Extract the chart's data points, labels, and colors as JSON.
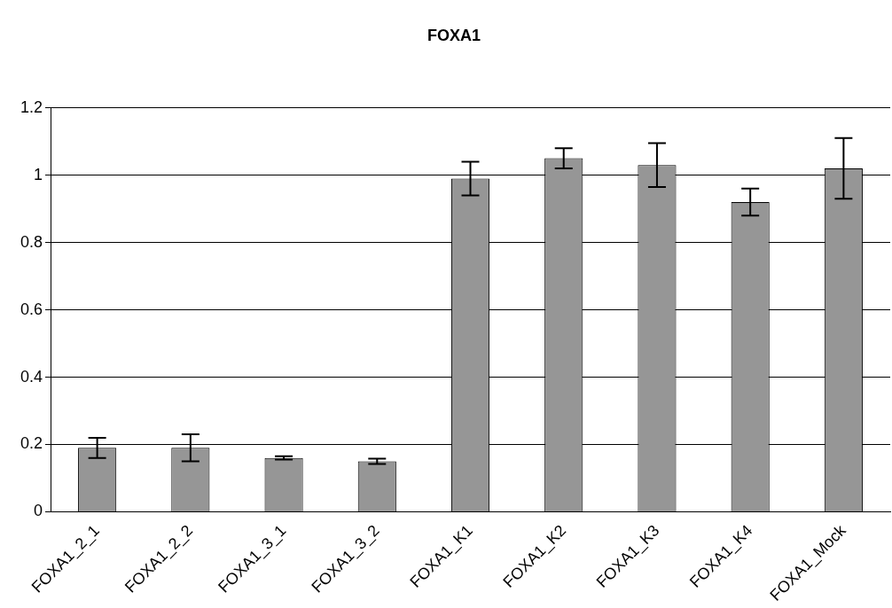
{
  "chart_data": {
    "type": "bar",
    "title": "FOXA1",
    "categories": [
      "FOXA1_2_1",
      "FOXA1_2_2",
      "FOXA1_3_1",
      "FOXA1_3_2",
      "FOXA1_K1",
      "FOXA1_K2",
      "FOXA1_K3",
      "FOXA1_K4",
      "FOXA1_Mock"
    ],
    "values": [
      0.19,
      0.19,
      0.16,
      0.15,
      0.99,
      1.05,
      1.03,
      0.92,
      1.02
    ],
    "errors": [
      0.03,
      0.04,
      0.005,
      0.008,
      0.05,
      0.03,
      0.065,
      0.04,
      0.09
    ],
    "color": "#969696",
    "ylim": [
      0,
      1.2
    ],
    "yticks": [
      0,
      0.2,
      0.4,
      0.6,
      0.8,
      1,
      1.2
    ],
    "grid": "y",
    "legend": false
  }
}
